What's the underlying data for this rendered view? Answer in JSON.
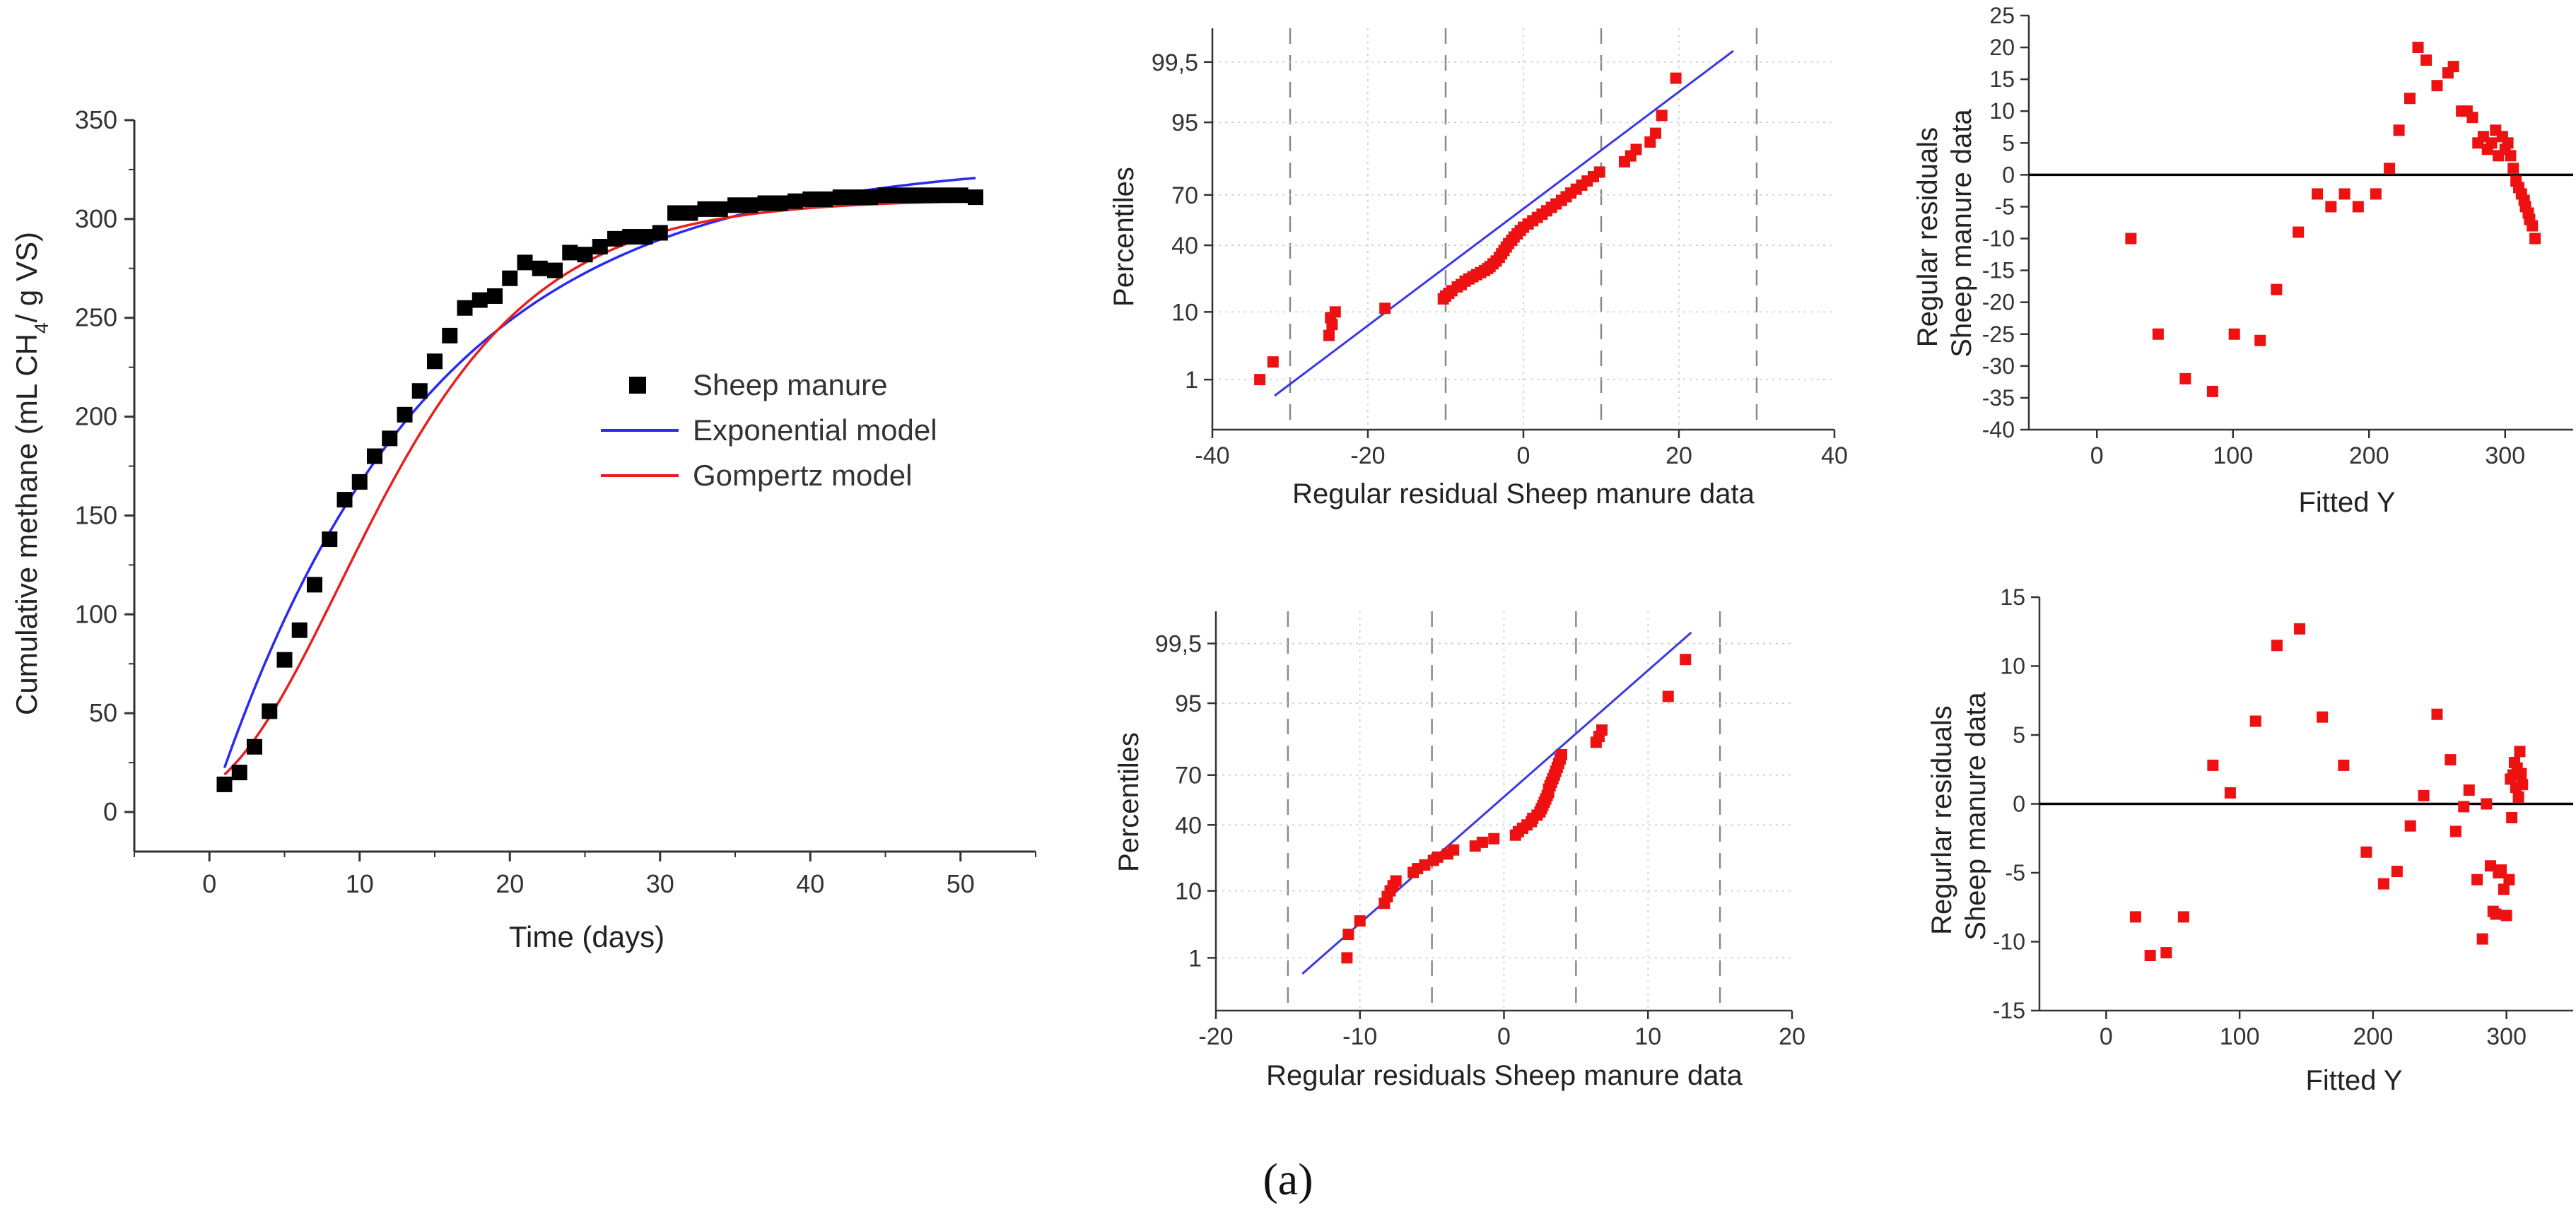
{
  "figure_label": "(a)",
  "colors": {
    "scatter_black": "#000000",
    "exponential": "#2a2af0",
    "gompertz": "#e8201c",
    "residual_red": "#ee1111",
    "fit_line": "#3a3ae0",
    "axis": "#333333"
  },
  "chart_data": [
    {
      "id": "cumulative",
      "type": "scatter",
      "title": "",
      "xlabel": "Time (days)",
      "ylabel_parts": [
        "Cumulative methane (mL CH",
        "4",
        "/ g VS)"
      ],
      "xlim": [
        -5,
        55
      ],
      "ylim": [
        -20,
        350
      ],
      "xticks": [
        0,
        10,
        20,
        30,
        40,
        50
      ],
      "yticks": [
        0,
        50,
        100,
        150,
        200,
        250,
        300,
        350
      ],
      "legend": {
        "placement": "center-right",
        "items": [
          "Sheep manure",
          "Exponential model",
          "Gompertz model"
        ]
      },
      "series": [
        {
          "name": "Sheep manure",
          "kind": "markers",
          "x": [
            1,
            2,
            3,
            4,
            5,
            6,
            7,
            8,
            9,
            10,
            11,
            12,
            13,
            14,
            15,
            16,
            17,
            18,
            19,
            20,
            21,
            22,
            23,
            24,
            25,
            26,
            27,
            28,
            29,
            30,
            31,
            32,
            33,
            34,
            35,
            36,
            37,
            38,
            39,
            40,
            41,
            42,
            43,
            44,
            45,
            46,
            47,
            48,
            49,
            50,
            51
          ],
          "y": [
            14,
            20,
            33,
            51,
            77,
            92,
            115,
            138,
            158,
            167,
            180,
            189,
            201,
            213,
            228,
            241,
            255,
            259,
            261,
            270,
            278,
            275,
            274,
            283,
            282,
            286,
            290,
            291,
            291,
            293,
            303,
            303,
            305,
            305,
            307,
            307,
            308,
            308,
            309,
            310,
            310,
            311,
            311,
            311,
            312,
            312,
            312,
            312,
            312,
            312,
            311
          ]
        },
        {
          "name": "Exponential model",
          "kind": "line",
          "model": "exponential",
          "params": {
            "A": 330,
            "k": 0.07,
            "x0": 0
          },
          "x_range": [
            1,
            51
          ]
        },
        {
          "name": "Gompertz model",
          "kind": "line",
          "model": "gompertz",
          "params": {
            "A": 310,
            "b": 3.2,
            "c": 0.135
          },
          "x_range": [
            1,
            51
          ]
        }
      ]
    },
    {
      "id": "probplot-exponential",
      "type": "scatter",
      "xlabel": "Regular residual Sheep manure data",
      "ylabel": "Percentiles",
      "xlim": [
        -40,
        40
      ],
      "xticks": [
        -40,
        -20,
        0,
        20,
        40
      ],
      "xgrid": [
        -30,
        -10,
        10,
        30
      ],
      "yticks": [
        1,
        10,
        40,
        70,
        95,
        99.5
      ],
      "ytick_labels": [
        "1",
        "10",
        "40",
        "70",
        "95",
        "99,5"
      ],
      "fit_line": {
        "x": [
          -32,
          27
        ],
        "p": [
          0.5,
          99.7
        ]
      },
      "points": [
        [
          -33.9,
          1
        ],
        [
          -32.2,
          2
        ],
        [
          -25,
          5
        ],
        [
          -24.6,
          7
        ],
        [
          -24.8,
          8.5
        ],
        [
          -24.2,
          10
        ],
        [
          -17.8,
          11
        ],
        [
          -10.3,
          14
        ],
        [
          -10,
          15
        ],
        [
          -9.6,
          16
        ],
        [
          -9.2,
          17
        ],
        [
          -8.5,
          18.5
        ],
        [
          -8,
          19.5
        ],
        [
          -7.5,
          21
        ],
        [
          -7,
          22
        ],
        [
          -6.5,
          23
        ],
        [
          -6,
          24
        ],
        [
          -5.5,
          25
        ],
        [
          -5,
          26
        ],
        [
          -4.6,
          27
        ],
        [
          -4.3,
          28
        ],
        [
          -3.9,
          29.5
        ],
        [
          -3.5,
          31
        ],
        [
          -3.1,
          33
        ],
        [
          -2.8,
          35
        ],
        [
          -2.5,
          37
        ],
        [
          -2.2,
          39
        ],
        [
          -1.9,
          41
        ],
        [
          -1.5,
          43
        ],
        [
          -1.2,
          45
        ],
        [
          -0.8,
          47
        ],
        [
          -0.4,
          49
        ],
        [
          0,
          51
        ],
        [
          0.6,
          53
        ],
        [
          1.2,
          55
        ],
        [
          1.8,
          57
        ],
        [
          2.4,
          59
        ],
        [
          3,
          61
        ],
        [
          3.6,
          63
        ],
        [
          4.2,
          65
        ],
        [
          4.9,
          67
        ],
        [
          5.5,
          69
        ],
        [
          6.1,
          71
        ],
        [
          6.8,
          73
        ],
        [
          7.5,
          75
        ],
        [
          8.2,
          77
        ],
        [
          9,
          79
        ],
        [
          9.8,
          81
        ],
        [
          13,
          85
        ],
        [
          13.8,
          87
        ],
        [
          14.5,
          89
        ],
        [
          16.3,
          91
        ],
        [
          17,
          93
        ],
        [
          17.8,
          96
        ],
        [
          19.6,
          99
        ]
      ]
    },
    {
      "id": "residuals-exponential",
      "type": "scatter",
      "xlabel": "Fitted Y",
      "ylabel_lines": [
        "Regular residuals",
        "Sheep manure data"
      ],
      "xlim": [
        -50,
        350
      ],
      "ylim": [
        -40,
        25
      ],
      "xticks": [
        0,
        100,
        200,
        300
      ],
      "yticks": [
        -40,
        -35,
        -30,
        -25,
        -20,
        -15,
        -10,
        -5,
        0,
        5,
        10,
        15,
        20,
        25
      ],
      "zero_line": true,
      "points": [
        [
          25,
          -10
        ],
        [
          45,
          -25
        ],
        [
          65,
          -32
        ],
        [
          85,
          -34
        ],
        [
          101,
          -25
        ],
        [
          120,
          -26
        ],
        [
          132,
          -18
        ],
        [
          148,
          -9
        ],
        [
          162,
          -3
        ],
        [
          172,
          -5
        ],
        [
          182,
          -3
        ],
        [
          192,
          -5
        ],
        [
          205,
          -3
        ],
        [
          215,
          1
        ],
        [
          222,
          7
        ],
        [
          230,
          12
        ],
        [
          236,
          20
        ],
        [
          242,
          18
        ],
        [
          250,
          14
        ],
        [
          258,
          16
        ],
        [
          262,
          17
        ],
        [
          268,
          10
        ],
        [
          272,
          10
        ],
        [
          276,
          9
        ],
        [
          280,
          5
        ],
        [
          284,
          6
        ],
        [
          287,
          4
        ],
        [
          290,
          5
        ],
        [
          293,
          7
        ],
        [
          295,
          3
        ],
        [
          298,
          6
        ],
        [
          300,
          4
        ],
        [
          302,
          5
        ],
        [
          304,
          3
        ],
        [
          306,
          1
        ],
        [
          308,
          -1
        ],
        [
          310,
          -2
        ],
        [
          312,
          -3
        ],
        [
          314,
          -4
        ],
        [
          315,
          -5
        ],
        [
          317,
          -6
        ],
        [
          318,
          -7
        ],
        [
          320,
          -8
        ],
        [
          322,
          -10
        ]
      ]
    },
    {
      "id": "probplot-gompertz",
      "type": "scatter",
      "xlabel": "Regular residuals Sheep manure data",
      "ylabel": "Percentiles",
      "xlim": [
        -20,
        20
      ],
      "xticks": [
        -20,
        -10,
        0,
        10,
        20
      ],
      "xgrid": [
        -15,
        -5,
        5,
        15
      ],
      "yticks": [
        1,
        10,
        40,
        70,
        95,
        99.5
      ],
      "ytick_labels": [
        "1",
        "10",
        "40",
        "70",
        "95",
        "99,5"
      ],
      "fit_line": {
        "x": [
          -14,
          13
        ],
        "p": [
          0.5,
          99.7
        ]
      },
      "points": [
        [
          -10.9,
          1
        ],
        [
          -10.8,
          2.5
        ],
        [
          -10,
          4
        ],
        [
          -8.3,
          7
        ],
        [
          -8.1,
          8.5
        ],
        [
          -7.9,
          10
        ],
        [
          -7.7,
          11.5
        ],
        [
          -7.5,
          13
        ],
        [
          -6.3,
          16
        ],
        [
          -6,
          17.5
        ],
        [
          -5.5,
          19
        ],
        [
          -4.9,
          21
        ],
        [
          -4.6,
          22.5
        ],
        [
          -3.9,
          24
        ],
        [
          -3.5,
          26
        ],
        [
          -2,
          28
        ],
        [
          -1.5,
          30
        ],
        [
          -0.7,
          32
        ],
        [
          0.8,
          34
        ],
        [
          1,
          36
        ],
        [
          1.3,
          38
        ],
        [
          1.6,
          40
        ],
        [
          1.9,
          42
        ],
        [
          2,
          44
        ],
        [
          2.3,
          46
        ],
        [
          2.5,
          48
        ],
        [
          2.6,
          50
        ],
        [
          2.7,
          52
        ],
        [
          2.8,
          54
        ],
        [
          2.9,
          56
        ],
        [
          3,
          58
        ],
        [
          3.1,
          60
        ],
        [
          3.1,
          62
        ],
        [
          3.2,
          64
        ],
        [
          3.3,
          66
        ],
        [
          3.4,
          68
        ],
        [
          3.5,
          70
        ],
        [
          3.6,
          72
        ],
        [
          3.7,
          74
        ],
        [
          3.8,
          76
        ],
        [
          3.9,
          78
        ],
        [
          4,
          80
        ],
        [
          6.4,
          85
        ],
        [
          6.6,
          87
        ],
        [
          6.8,
          89
        ],
        [
          11.4,
          96
        ],
        [
          12.6,
          99
        ]
      ]
    },
    {
      "id": "residuals-gompertz",
      "type": "scatter",
      "xlabel": "Fitted Y",
      "ylabel_lines": [
        "Regurlar residuals",
        "Sheep manure data"
      ],
      "xlim": [
        -50,
        350
      ],
      "ylim": [
        -15,
        15
      ],
      "xticks": [
        0,
        100,
        200,
        300
      ],
      "yticks": [
        -15,
        -10,
        -5,
        0,
        5,
        10,
        15
      ],
      "zero_line": true,
      "points": [
        [
          22,
          -8.2
        ],
        [
          33,
          -11
        ],
        [
          45,
          -10.8
        ],
        [
          58,
          -8.2
        ],
        [
          80,
          2.8
        ],
        [
          93,
          0.8
        ],
        [
          112,
          6
        ],
        [
          128,
          11.5
        ],
        [
          145,
          12.7
        ],
        [
          162,
          6.3
        ],
        [
          178,
          2.8
        ],
        [
          195,
          -3.5
        ],
        [
          208,
          -5.8
        ],
        [
          218,
          -4.9
        ],
        [
          228,
          -1.6
        ],
        [
          238,
          0.6
        ],
        [
          248,
          6.5
        ],
        [
          258,
          3.2
        ],
        [
          262,
          -2
        ],
        [
          268,
          -0.2
        ],
        [
          272,
          1
        ],
        [
          278,
          -5.5
        ],
        [
          282,
          -9.8
        ],
        [
          285,
          0
        ],
        [
          288,
          -4.5
        ],
        [
          290,
          -7.8
        ],
        [
          292,
          -8
        ],
        [
          294,
          -5
        ],
        [
          296,
          -4.8
        ],
        [
          298,
          -6.2
        ],
        [
          300,
          -8.1
        ],
        [
          302,
          -5.5
        ],
        [
          303,
          1.8
        ],
        [
          304,
          -1
        ],
        [
          305,
          2.1
        ],
        [
          306,
          3
        ],
        [
          307,
          1.2
        ],
        [
          308,
          2.6
        ],
        [
          309,
          0.5
        ],
        [
          310,
          3.8
        ],
        [
          311,
          2.2
        ],
        [
          312,
          1.4
        ]
      ]
    }
  ]
}
